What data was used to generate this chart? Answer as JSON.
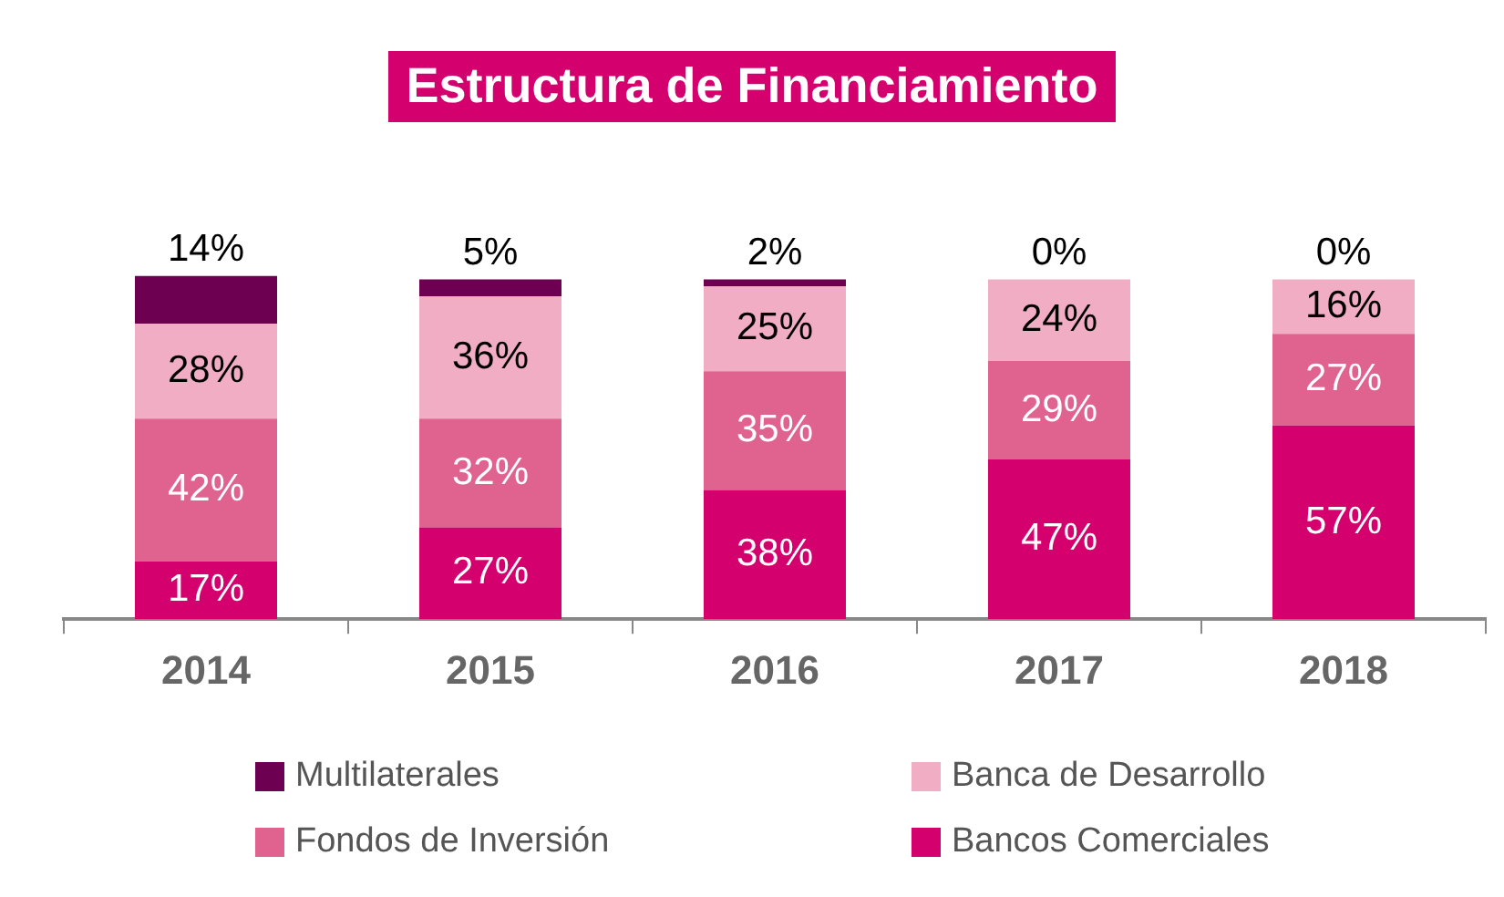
{
  "chart_data": {
    "type": "bar",
    "title": "Estructura de Financiamiento",
    "stacked": true,
    "legend": "bottom",
    "grid": false,
    "categories": [
      "2014",
      "2015",
      "2016",
      "2017",
      "2018"
    ],
    "series": [
      {
        "name": "Bancos Comerciales",
        "color": "#d4006e",
        "values": [
          17,
          27,
          38,
          47,
          57
        ],
        "value_labels": [
          "17%",
          "27%",
          "38%",
          "47%",
          "57%"
        ]
      },
      {
        "name": "Fondos de Inversión",
        "color": "#e0628e",
        "values": [
          42,
          32,
          35,
          29,
          27
        ],
        "value_labels": [
          "42%",
          "32%",
          "35%",
          "29%",
          "27%"
        ]
      },
      {
        "name": "Banca de Desarrollo",
        "color": "#f0adc3",
        "values": [
          28,
          36,
          25,
          24,
          16
        ],
        "value_labels": [
          "28%",
          "36%",
          "25%",
          "24%",
          "16%"
        ]
      },
      {
        "name": "Multilaterales",
        "color": "#6d0050",
        "values": [
          14,
          5,
          2,
          0,
          0
        ],
        "value_labels": [
          "14%",
          "5%",
          "2%",
          "0%",
          "0%"
        ]
      }
    ]
  }
}
